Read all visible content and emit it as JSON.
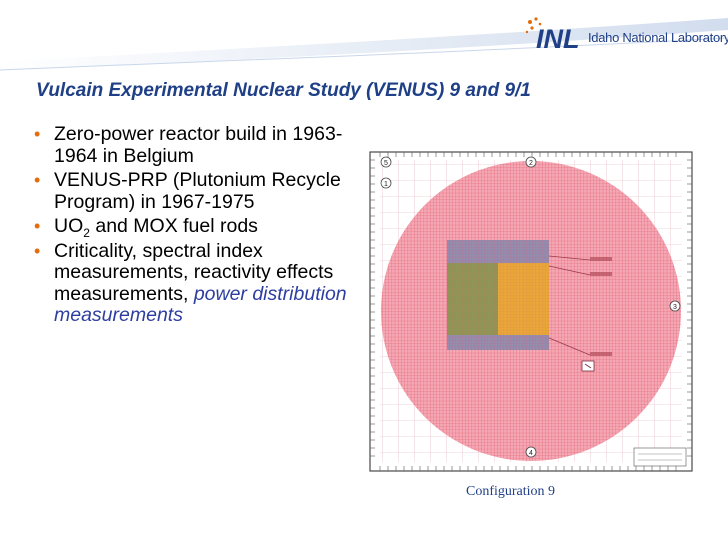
{
  "header": {
    "logo_text": "INL",
    "org_name": "Idaho National Laboratory"
  },
  "slide": {
    "title": "Vulcain Experimental Nuclear Study (VENUS) 9 and 9/1",
    "bullets": [
      {
        "text": "Zero-power reactor build in 1963-1964 in Belgium"
      },
      {
        "text": "VENUS-PRP (Plutonium Recycle Program) in 1967-1975"
      },
      {
        "pre": "UO",
        "sub": "2",
        "post": " and MOX fuel rods"
      },
      {
        "text": "Criticality, spectral index measurements, reactivity effects measurements,",
        "highlight": "power distribution measurements"
      }
    ],
    "figure": {
      "edge_labels": [
        "5",
        "1",
        "2",
        "3",
        "4"
      ],
      "colors": {
        "grid": "#e25b6a",
        "circle": "#f4a7b4",
        "blue_block": "#8a8aae",
        "olive": "#8e9656",
        "orange": "#e8a838",
        "frame": "#4a4a4a"
      }
    },
    "caption": "Configuration 9"
  },
  "colors": {
    "title": "#1f3f86",
    "bullet": "#e46c0a",
    "highlight": "#2e3ea0"
  }
}
